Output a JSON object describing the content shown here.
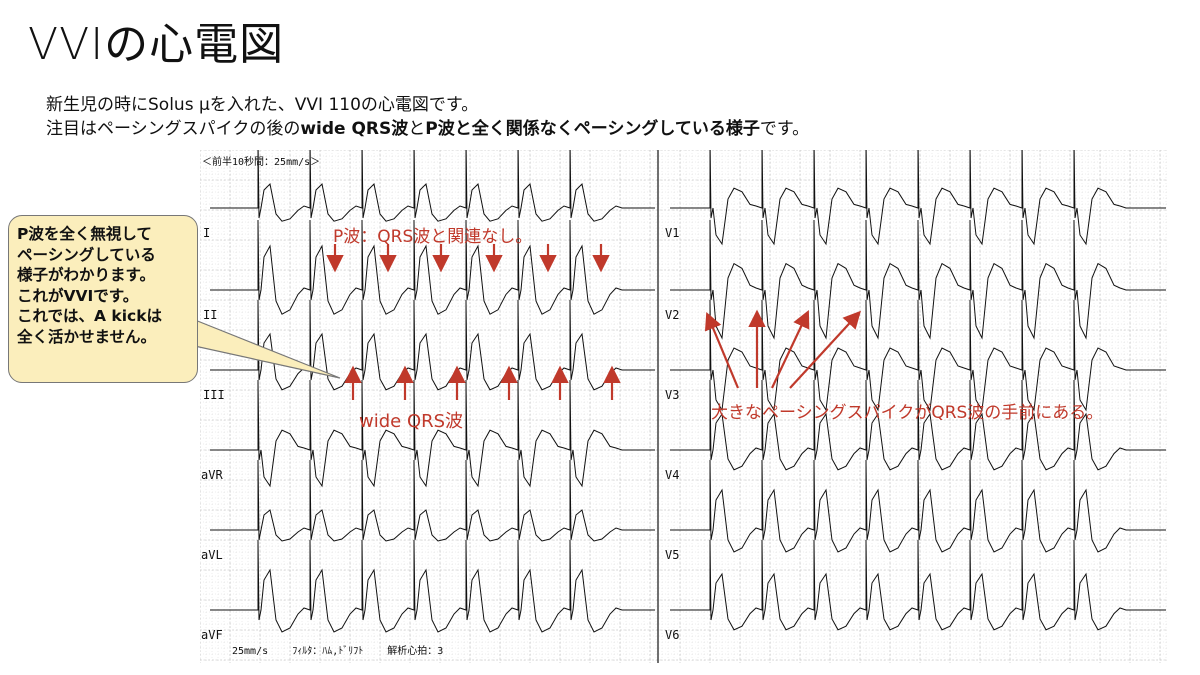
{
  "slide": {
    "title": "VVIの心電図",
    "subtitle_line1": "新生児の時にSolus μを入れた、VVI 110の心電図です。",
    "subtitle_line2_parts": [
      {
        "text": "注目はペーシングスパイクの後の",
        "bold": false
      },
      {
        "text": "wide QRS波",
        "bold": true
      },
      {
        "text": "と",
        "bold": false
      },
      {
        "text": "P波と全く関係なくペーシングしている様子",
        "bold": true
      },
      {
        "text": "です。",
        "bold": false
      }
    ]
  },
  "ecg": {
    "header": "＜前半10秒間：25mm/s＞",
    "footer": "25mm/s    ﾌｨﾙﾀ：ﾊﾑ,ﾄﾞﾘﾌﾄ    解析心拍：3",
    "limb_leads": [
      "I",
      "II",
      "III",
      "aVR",
      "aVL",
      "aVF"
    ],
    "chest_leads": [
      "V1",
      "V2",
      "V3",
      "V4",
      "V5",
      "V6"
    ]
  },
  "annotations": {
    "p_wave_label": "P波：QRS波と関連なし。",
    "wide_qrs_label": "wide QRS波",
    "spike_label": "大きなペーシングスパイクがQRS波の手前にある。",
    "accent_color": "#c0392b"
  },
  "callout": {
    "lines": [
      "P波を全く無視して",
      "ペーシングしている",
      "様子がわかります。",
      "これがVVIです。",
      "これでは、A kickは",
      "全く活かせません。"
    ],
    "background": "#fbeebc"
  }
}
